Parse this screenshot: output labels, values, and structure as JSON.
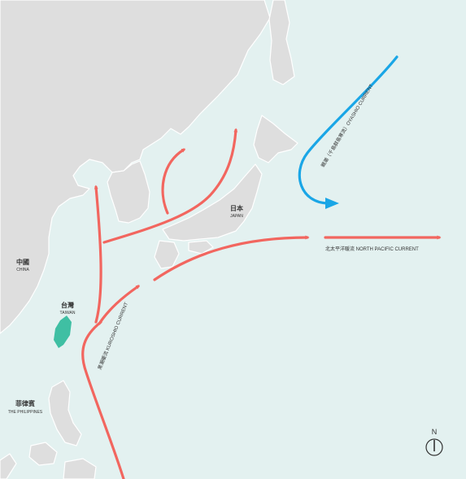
{
  "colors": {
    "sea": "#e3f1f0",
    "land": "#dedede",
    "warm_current": "#f2665f",
    "cold_current": "#1aa6e6",
    "taiwan": "#3fbfa3",
    "text": "#333333"
  },
  "countries": {
    "china": {
      "name": "中國",
      "name_en": "CHINA"
    },
    "taiwan": {
      "name": "台灣",
      "name_en": "TAIWAN"
    },
    "japan": {
      "name": "日本",
      "name_en": "JAPAN"
    },
    "philippines": {
      "name": "菲律賓",
      "name_en": "THE PHILIPPINES"
    }
  },
  "currents": {
    "kuroshio": {
      "label": "黑潮暖流 KUROSHIO CURRENT",
      "type": "warm"
    },
    "oyashio": {
      "label": "親潮（千島群島寒流）OYASHIO CURRENT",
      "type": "cold"
    },
    "north_pacific": {
      "label": "北太平洋暖流 NORTH PACIFIC CURRENT",
      "type": "warm"
    }
  },
  "compass": {
    "label": "N"
  }
}
